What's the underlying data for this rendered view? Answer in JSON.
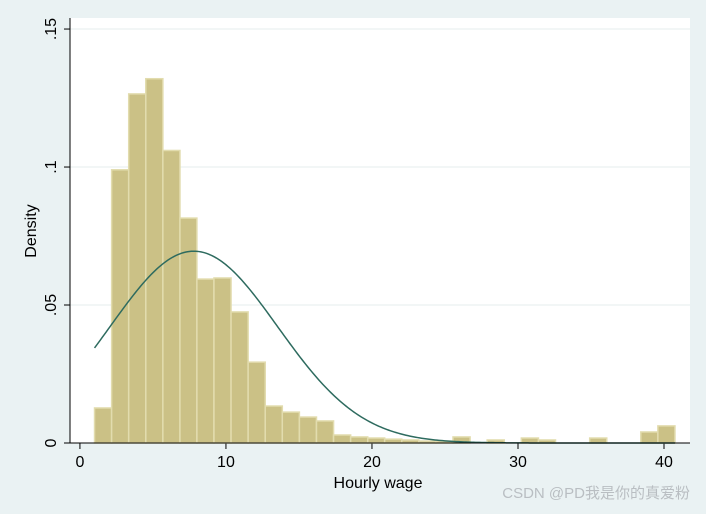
{
  "chart_data": {
    "type": "histogram",
    "x_label": "Hourly wage",
    "y_label": "Density",
    "bins": [
      1.0,
      2.17,
      3.34,
      4.51,
      5.68,
      6.85,
      8.01,
      9.18,
      10.35,
      11.52,
      12.69,
      13.86,
      15.03,
      16.2,
      17.37,
      18.54,
      19.71,
      20.87,
      22.04,
      23.21,
      24.38,
      25.55,
      26.72,
      27.89,
      29.06,
      30.23,
      31.4,
      32.57,
      33.74,
      34.91,
      36.08,
      37.25,
      38.41,
      39.58,
      40.75
    ],
    "values": [
      0.0127,
      0.099,
      0.1265,
      0.132,
      0.106,
      0.0815,
      0.0594,
      0.0598,
      0.0475,
      0.0293,
      0.0134,
      0.0112,
      0.0094,
      0.008,
      0.0029,
      0.0022,
      0.0018,
      0.0014,
      0.0011,
      0.0007,
      0.0007,
      0.0022,
      0,
      0.0011,
      0,
      0.0018,
      0.0011,
      0,
      0,
      0.0018,
      0,
      0,
      0.004,
      0.0062
    ],
    "color": "#cbc186",
    "edge_color": "#e2dcae",
    "normal_curve": {
      "mean": 7.8,
      "sd": 5.74,
      "color": "#2e6b5f"
    },
    "xlim": [
      -0.68,
      41.78
    ],
    "ylim": [
      0,
      0.154
    ],
    "xticks": [
      0,
      10,
      20,
      30,
      40
    ],
    "yticks": [
      0,
      {
        "value": 0.05,
        "label": ".05"
      },
      {
        "value": 0.1,
        "label": ".1"
      },
      {
        "value": 0.15,
        "label": ".15"
      }
    ],
    "grid": true,
    "watermark": "CSDN @PD我是你的真爱粉"
  }
}
